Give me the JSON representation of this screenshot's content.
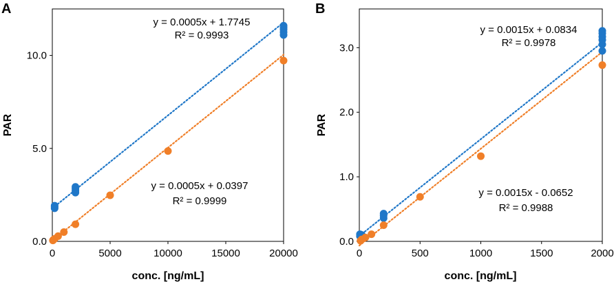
{
  "chart_data": [
    {
      "type": "scatter",
      "panel": "A",
      "xlabel": "conc. [ng/mL]",
      "ylabel": "PAR",
      "xlim": [
        0,
        20000
      ],
      "ylim": [
        0,
        12.5
      ],
      "xticks": [
        0,
        5000,
        10000,
        15000,
        20000
      ],
      "xtick_labels": [
        "0",
        "5000",
        "10000",
        "15000",
        "20000"
      ],
      "yticks": [
        0,
        5,
        10
      ],
      "ytick_labels": [
        "0.0",
        "5.0",
        "10.0"
      ],
      "grid": false,
      "series": [
        {
          "name": "blue",
          "color": "#1f77c8",
          "x": [
            200,
            200,
            200,
            2000,
            2000,
            2000,
            2000,
            20000,
            20000,
            20000,
            20000,
            20000
          ],
          "y": [
            1.78,
            1.86,
            1.92,
            2.62,
            2.72,
            2.84,
            2.93,
            11.1,
            11.25,
            11.4,
            11.5,
            11.6
          ],
          "trend": {
            "slope": 0.0005,
            "intercept": 1.7745,
            "equation": "y = 0.0005x + 1.7745",
            "r2": "R² = 0.9993"
          }
        },
        {
          "name": "orange",
          "color": "#f07f28",
          "x": [
            50,
            100,
            200,
            500,
            1000,
            2000,
            5000,
            10000,
            20000
          ],
          "y": [
            0.05,
            0.09,
            0.14,
            0.28,
            0.5,
            0.92,
            2.48,
            4.86,
            9.72
          ],
          "trend": {
            "slope": 0.0005,
            "intercept": 0.0397,
            "equation": "y = 0.0005x + 0.0397",
            "r2": "R² = 0.9999"
          }
        }
      ]
    },
    {
      "type": "scatter",
      "panel": "B",
      "xlabel": "conc. [ng/mL]",
      "ylabel": "PAR",
      "xlim": [
        0,
        2000
      ],
      "ylim": [
        0,
        3.6
      ],
      "xticks": [
        0,
        500,
        1000,
        1500,
        2000
      ],
      "xtick_labels": [
        "0",
        "500",
        "1000",
        "1500",
        "2000"
      ],
      "yticks": [
        0,
        1,
        2,
        3
      ],
      "ytick_labels": [
        "0.0",
        "1.0",
        "2.0",
        "3.0"
      ],
      "grid": false,
      "series": [
        {
          "name": "blue",
          "color": "#1f77c8",
          "x": [
            5,
            5,
            10,
            20,
            200,
            200,
            200,
            2000,
            2000,
            2000,
            2000,
            2000,
            2000
          ],
          "y": [
            0.08,
            0.11,
            0.07,
            0.1,
            0.36,
            0.4,
            0.43,
            2.95,
            3.05,
            3.12,
            3.17,
            3.22,
            3.26
          ],
          "trend": {
            "slope": 0.0015,
            "intercept": 0.0834,
            "equation": "y = 0.0015x + 0.0834",
            "r2": "R² = 0.9978"
          }
        },
        {
          "name": "orange",
          "color": "#f07f28",
          "x": [
            10,
            20,
            50,
            100,
            200,
            500,
            1000,
            2000
          ],
          "y": [
            0.01,
            0.03,
            0.06,
            0.11,
            0.25,
            0.69,
            1.32,
            2.73
          ],
          "trend": {
            "slope": 0.0015,
            "intercept": -0.0652,
            "equation": "y = 0.0015x - 0.0652",
            "r2": "R² = 0.9988"
          }
        }
      ]
    }
  ]
}
